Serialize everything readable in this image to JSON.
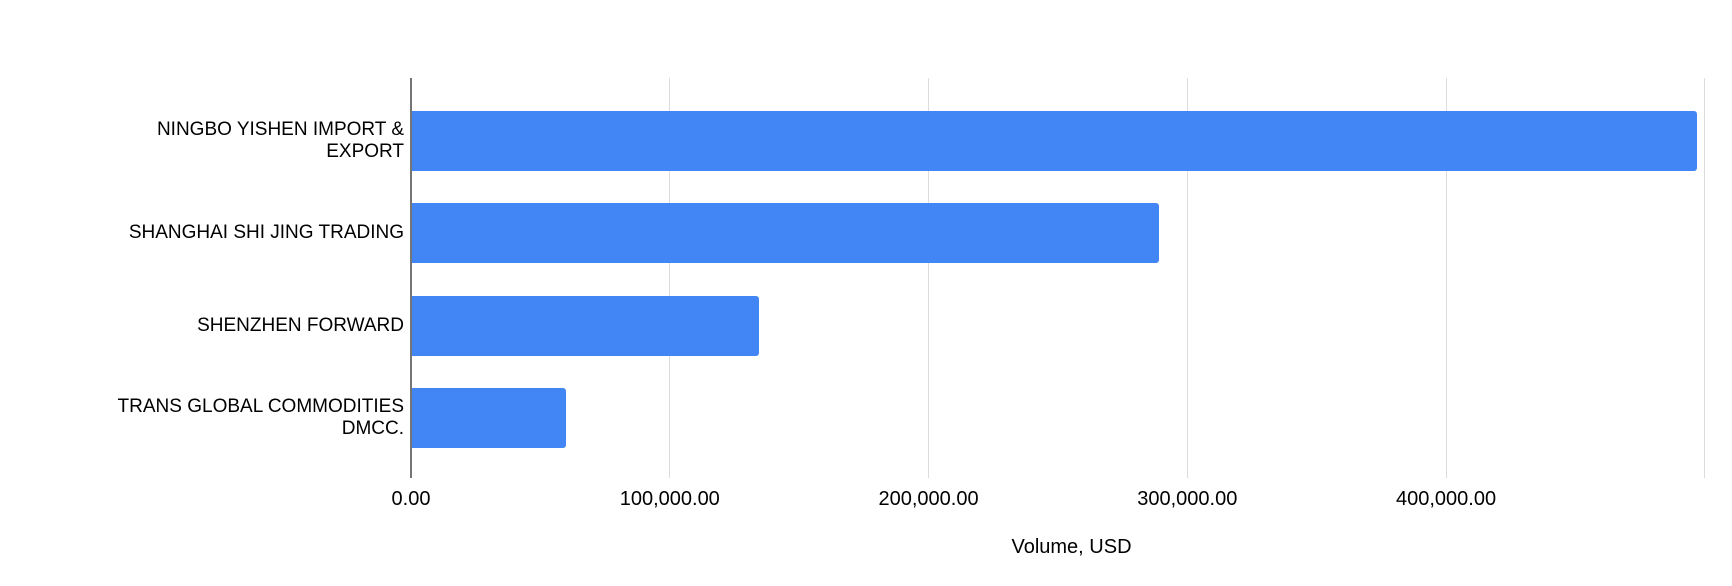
{
  "chart_data": {
    "type": "bar",
    "orientation": "horizontal",
    "title": "",
    "categories": [
      "NINGBO YISHEN IMPORT & EXPORT",
      "SHANGHAI SHI JING TRADING",
      "SHENZHEN FORWARD",
      "TRANS GLOBAL COMMODITIES DMCC."
    ],
    "values": [
      497000,
      289000,
      134500,
      60000
    ],
    "xlabel": "Volume, USD",
    "ylabel": "",
    "xlim": [
      0,
      510500
    ],
    "ticks": [
      {
        "value": 0,
        "label": "0.00"
      },
      {
        "value": 100000,
        "label": "100,000.00"
      },
      {
        "value": 200000,
        "label": "200,000.00"
      },
      {
        "value": 300000,
        "label": "300,000.00"
      },
      {
        "value": 400000,
        "label": "400,000.00"
      },
      {
        "value": 500000,
        "label": ""
      }
    ],
    "grid": true,
    "legend": "none",
    "colors": {
      "bar": "#4285f4",
      "axis_line": "#757575",
      "gridline": "#dcdcdc",
      "text": "#000000",
      "background": "#ffffff"
    }
  }
}
